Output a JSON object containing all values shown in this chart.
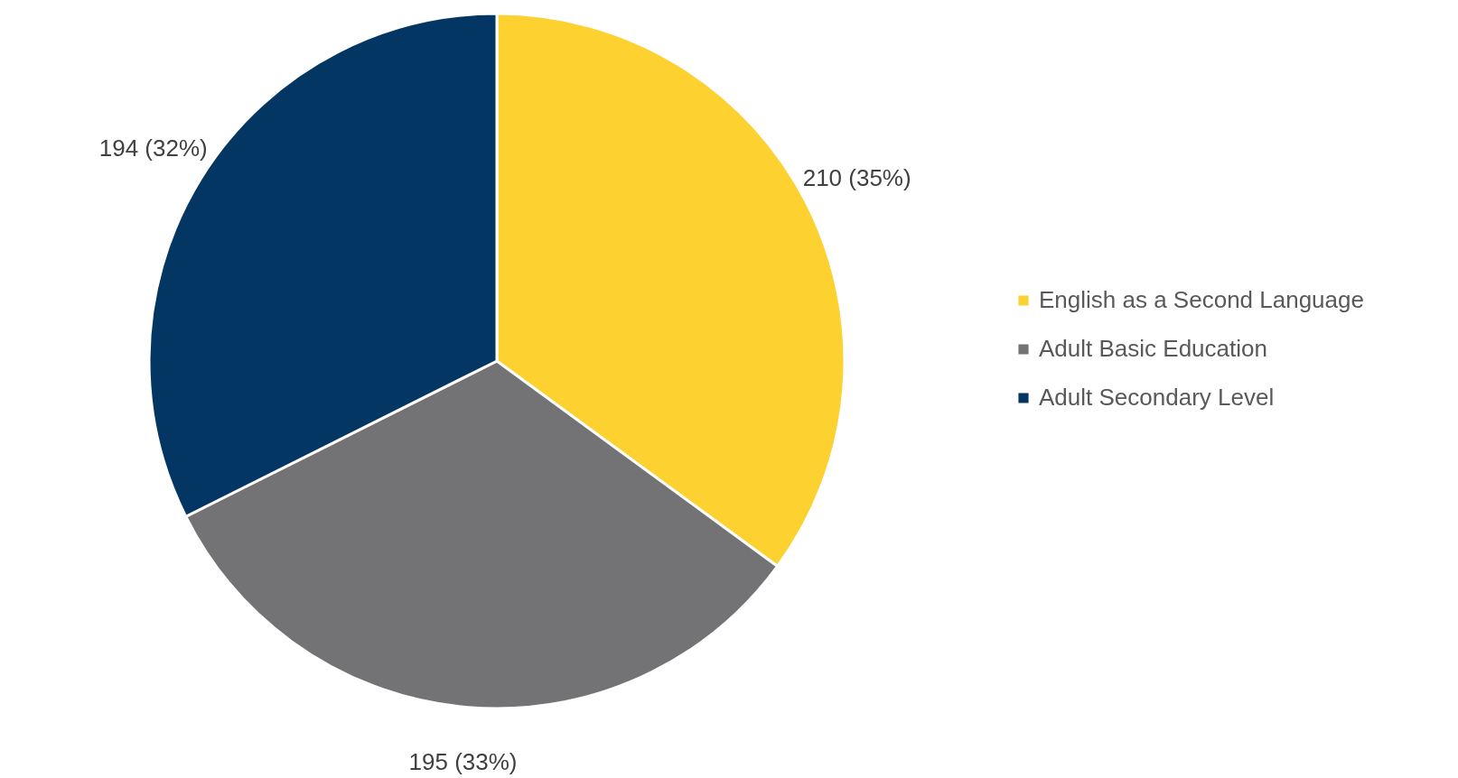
{
  "chart_data": {
    "type": "pie",
    "categories": [
      "English as a Second Language",
      "Adult Basic Education",
      "Adult Secondary Level"
    ],
    "values": [
      210,
      195,
      194
    ],
    "colors": [
      "#fdd130",
      "#737274",
      "#033663"
    ],
    "value_labels": [
      "210 (35%)",
      "195 (33%)",
      "194 (32%)"
    ],
    "legend": "right"
  }
}
